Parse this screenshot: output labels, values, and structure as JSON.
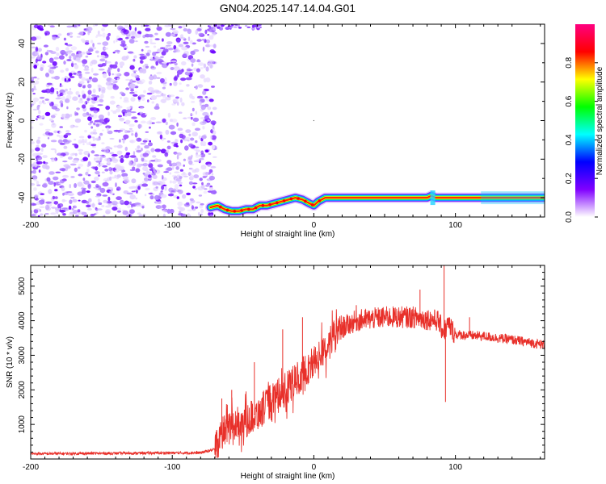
{
  "title": "GN04.2025.147.14.04.G01",
  "chart_data": [
    {
      "type": "heatmap",
      "xlabel": "Height of straight line (km)",
      "ylabel": "Frequency (Hz)",
      "xlim": [
        -200,
        163
      ],
      "ylim": [
        -50,
        50
      ],
      "xticks": [
        -200,
        -100,
        0,
        100
      ],
      "yticks": [
        -40,
        -20,
        0,
        20,
        40
      ],
      "colorbar": {
        "label": "Normalized spectral amplitude",
        "range": [
          0,
          1
        ],
        "ticks": [
          0.0,
          0.2,
          0.4,
          0.6,
          0.8
        ],
        "colors": [
          "#ffffff",
          "#8000ff",
          "#0000ff",
          "#00ffff",
          "#00ff00",
          "#ffff00",
          "#ff0000",
          "#ff0080"
        ]
      },
      "noise_region_x": [
        -200,
        -73
      ],
      "trace": {
        "x": [
          -73,
          -68,
          -63,
          -58,
          -53,
          -48,
          -43,
          -38,
          -33,
          -28,
          -23,
          -18,
          -13,
          -8,
          -3,
          0,
          3,
          8,
          13,
          20,
          40,
          60,
          80,
          83,
          86,
          100,
          120,
          140,
          163
        ],
        "y": [
          -45,
          -44,
          -46,
          -47,
          -47,
          -46,
          -46,
          -44,
          -44,
          -43,
          -42,
          -41,
          -40,
          -41,
          -43,
          -44,
          -42,
          -40,
          -40,
          -40,
          -40,
          -40,
          -40,
          -39,
          -40,
          -40,
          -40,
          -40,
          -40
        ]
      },
      "sparse_top_x": [
        -75,
        -35
      ]
    },
    {
      "type": "line",
      "xlabel": "Height of straight line (km)",
      "ylabel": "SNR (10 * v/v)",
      "xlim": [
        -200,
        163
      ],
      "ylim": [
        0,
        5600
      ],
      "xticks": [
        -200,
        -100,
        0,
        100
      ],
      "yticks": [
        1000,
        2000,
        3000,
        4000,
        5000
      ],
      "color": "#e8302a",
      "envelope": {
        "x": [
          -200,
          -80,
          -70,
          -65,
          -60,
          -50,
          -40,
          -30,
          -20,
          -10,
          0,
          10,
          20,
          30,
          40,
          50,
          60,
          70,
          80,
          88,
          90,
          92,
          95,
          100,
          120,
          140,
          163
        ],
        "y": [
          150,
          180,
          280,
          700,
          900,
          1100,
          1300,
          1700,
          2000,
          2400,
          2800,
          3300,
          3800,
          4000,
          4050,
          4100,
          4100,
          4100,
          4050,
          4000,
          3800,
          3700,
          3900,
          3600,
          3550,
          3450,
          3300
        ]
      },
      "spikes": [
        {
          "x": -65,
          "y": 1750
        },
        {
          "x": -58,
          "y": 2000
        },
        {
          "x": -42,
          "y": 2800
        },
        {
          "x": -22,
          "y": 3750
        },
        {
          "x": -8,
          "y": 4100
        },
        {
          "x": 30,
          "y": 4450
        },
        {
          "x": 75,
          "y": 4900
        },
        {
          "x": 92,
          "y": 5600
        },
        {
          "x": 93,
          "y": 1650
        },
        {
          "x": 110,
          "y": 4100
        }
      ]
    }
  ]
}
